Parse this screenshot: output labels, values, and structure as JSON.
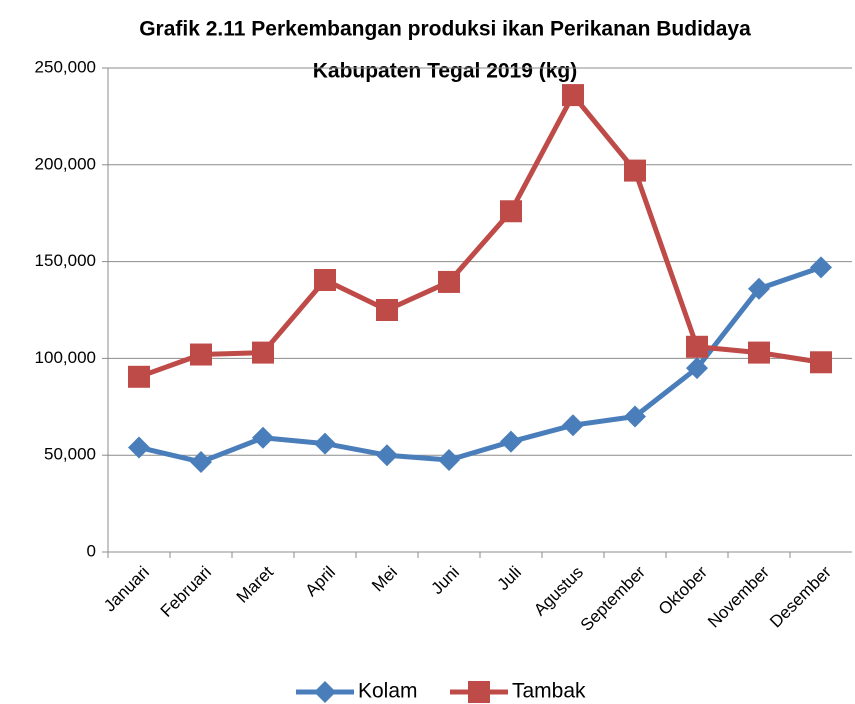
{
  "chart_data": {
    "type": "line",
    "title": [
      "Grafik 2.11 Perkembangan produksi ikan Perikanan  Budidaya",
      "Kabupaten Tegal 2019 (kg)"
    ],
    "categories": [
      "Januari",
      "Februari",
      "Maret",
      "April",
      "Mei",
      "Juni",
      "Juli",
      "Agustus",
      "September",
      "Oktober",
      "November",
      "Desember"
    ],
    "series": [
      {
        "name": "Kolam",
        "color": "#4a7ebb",
        "marker": "diamond",
        "values": [
          54000,
          46500,
          59000,
          56000,
          50000,
          47500,
          57000,
          65500,
          70000,
          95000,
          136000,
          147000
        ]
      },
      {
        "name": "Tambak",
        "color": "#be4b48",
        "marker": "square",
        "values": [
          90500,
          102000,
          103000,
          140500,
          125000,
          139500,
          176000,
          236000,
          197000,
          106000,
          103000,
          98000
        ]
      }
    ],
    "ylim": [
      0,
      250000
    ],
    "yticks": [
      0,
      {
        "value": 50000,
        "label": "50,000"
      },
      {
        "value": 100000,
        "label": "100,000"
      },
      {
        "value": 150000,
        "label": "150,000"
      },
      {
        "value": 200000,
        "label": "200,000"
      },
      {
        "value": 250000,
        "label": "250,000"
      }
    ],
    "grid": true,
    "legend": "bottom"
  }
}
